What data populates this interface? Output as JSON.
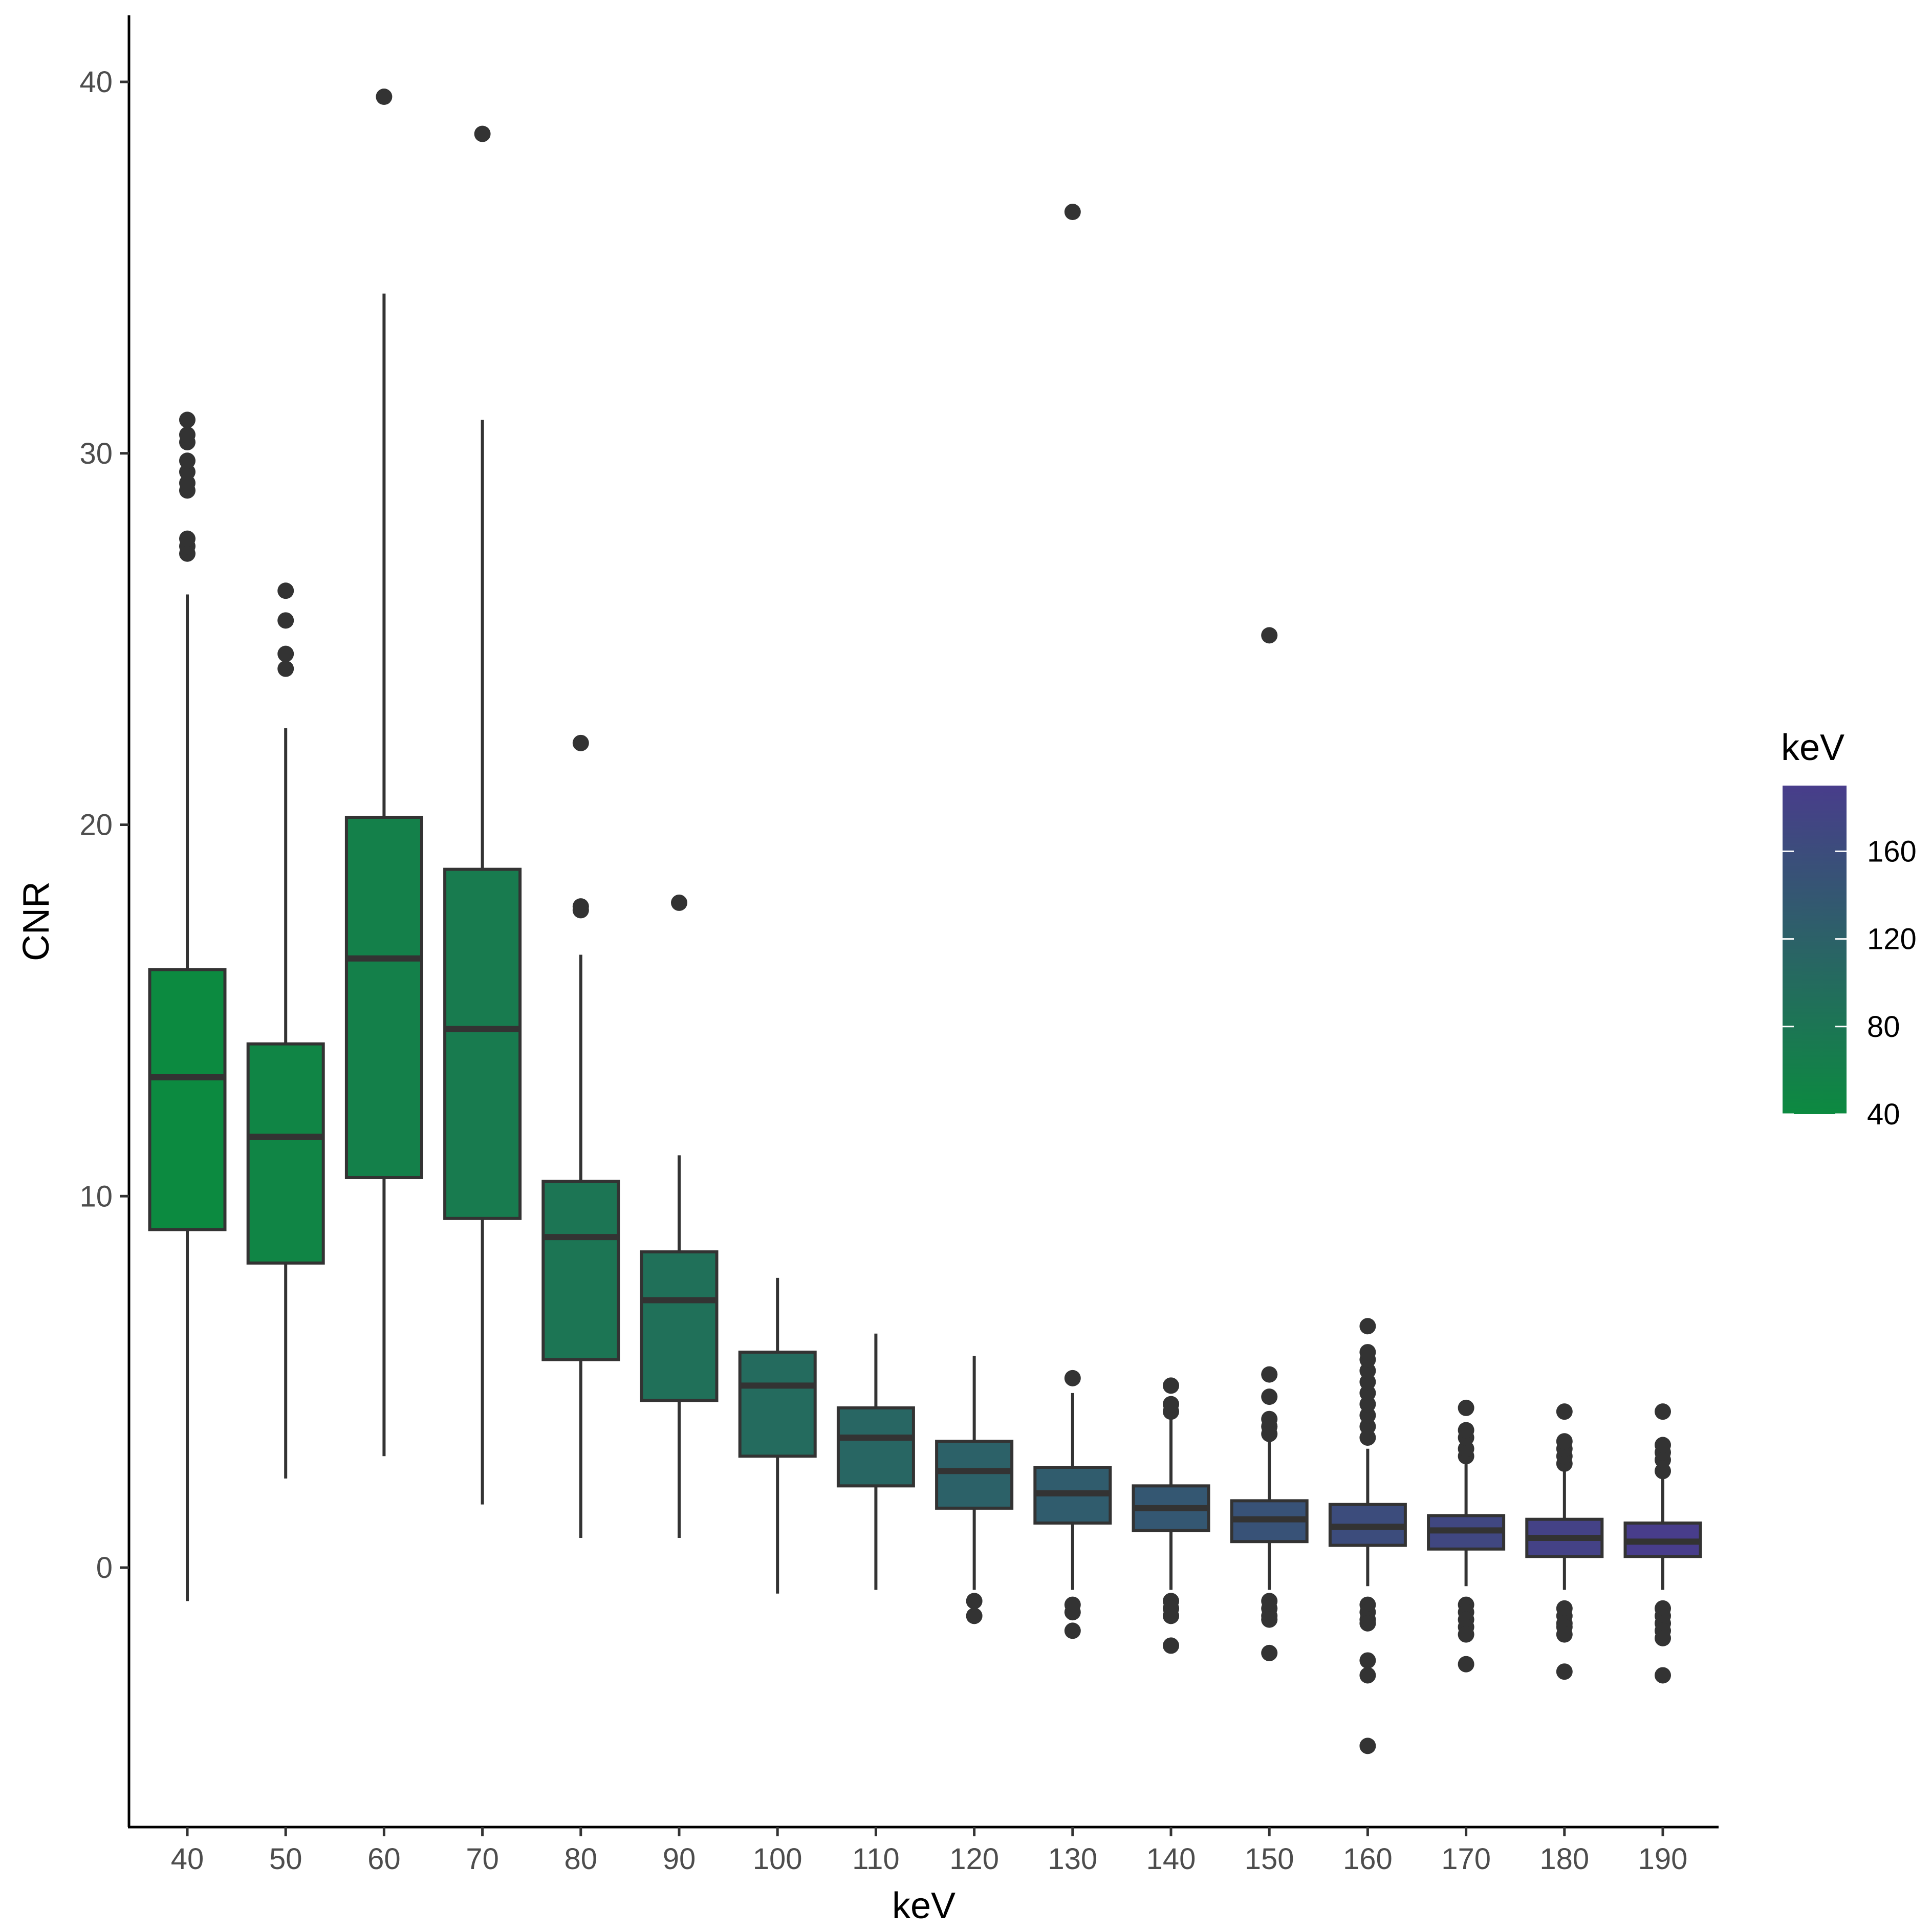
{
  "chart_data": {
    "type": "box",
    "xlabel": "keV",
    "ylabel": "CNR",
    "ylim": [
      -7,
      42
    ],
    "yticks": [
      0,
      10,
      20,
      30,
      40
    ],
    "categories": [
      "40",
      "50",
      "60",
      "70",
      "80",
      "90",
      "100",
      "110",
      "120",
      "130",
      "140",
      "150",
      "160",
      "170",
      "180",
      "190"
    ],
    "boxes": [
      {
        "x": "40",
        "q1": 9.1,
        "median": 13.2,
        "q3": 16.1,
        "whisker_low": -0.9,
        "whisker_high": 26.2,
        "outliers": [
          27.3,
          27.5,
          27.7,
          29.0,
          29.2,
          29.5,
          29.8,
          30.3,
          30.5,
          30.9
        ]
      },
      {
        "x": "50",
        "q1": 8.2,
        "median": 11.6,
        "q3": 14.1,
        "whisker_low": 2.4,
        "whisker_high": 22.6,
        "outliers": [
          24.2,
          24.6,
          25.5,
          26.3
        ]
      },
      {
        "x": "60",
        "q1": 10.5,
        "median": 16.4,
        "q3": 20.2,
        "whisker_low": 3.0,
        "whisker_high": 34.3,
        "outliers": [
          39.6
        ]
      },
      {
        "x": "70",
        "q1": 9.4,
        "median": 14.5,
        "q3": 18.8,
        "whisker_low": 1.7,
        "whisker_high": 30.9,
        "outliers": [
          38.6
        ]
      },
      {
        "x": "80",
        "q1": 5.6,
        "median": 8.9,
        "q3": 10.4,
        "whisker_low": 0.8,
        "whisker_high": 16.5,
        "outliers": [
          17.7,
          17.8,
          22.2
        ]
      },
      {
        "x": "90",
        "q1": 4.5,
        "median": 7.2,
        "q3": 8.5,
        "whisker_low": 0.8,
        "whisker_high": 11.1,
        "outliers": [
          17.9
        ]
      },
      {
        "x": "100",
        "q1": 3.0,
        "median": 4.9,
        "q3": 5.8,
        "whisker_low": -0.7,
        "whisker_high": 7.8,
        "outliers": []
      },
      {
        "x": "110",
        "q1": 2.2,
        "median": 3.5,
        "q3": 4.3,
        "whisker_low": -0.6,
        "whisker_high": 6.3,
        "outliers": []
      },
      {
        "x": "120",
        "q1": 1.6,
        "median": 2.6,
        "q3": 3.4,
        "whisker_low": -0.6,
        "whisker_high": 5.7,
        "outliers": [
          -0.9,
          -1.3
        ]
      },
      {
        "x": "130",
        "q1": 1.2,
        "median": 2.0,
        "q3": 2.7,
        "whisker_low": -0.6,
        "whisker_high": 4.7,
        "outliers": [
          5.1,
          -1.0,
          -1.2,
          -1.7,
          36.5
        ]
      },
      {
        "x": "140",
        "q1": 1.0,
        "median": 1.6,
        "q3": 2.2,
        "whisker_low": -0.6,
        "whisker_high": 4.0,
        "outliers": [
          4.2,
          4.4,
          4.9,
          -0.9,
          -1.1,
          -1.3,
          -2.1
        ]
      },
      {
        "x": "150",
        "q1": 0.7,
        "median": 1.3,
        "q3": 1.8,
        "whisker_low": -0.6,
        "whisker_high": 3.4,
        "outliers": [
          3.6,
          3.8,
          4.0,
          4.6,
          5.2,
          -0.9,
          -1.1,
          -1.3,
          -1.4,
          -2.3,
          25.1
        ]
      },
      {
        "x": "160",
        "q1": 0.6,
        "median": 1.1,
        "q3": 1.7,
        "whisker_low": -0.5,
        "whisker_high": 3.2,
        "outliers": [
          3.5,
          3.8,
          4.1,
          4.4,
          4.7,
          5.0,
          5.3,
          5.6,
          5.8,
          6.5,
          -1.0,
          -1.2,
          -1.4,
          -1.5,
          -2.5,
          -2.9,
          -4.8
        ]
      },
      {
        "x": "170",
        "q1": 0.5,
        "median": 1.0,
        "q3": 1.4,
        "whisker_low": -0.5,
        "whisker_high": 2.8,
        "outliers": [
          3.0,
          3.2,
          3.5,
          3.7,
          4.3,
          -1.0,
          -1.2,
          -1.4,
          -1.6,
          -1.8,
          -2.6
        ]
      },
      {
        "x": "180",
        "q1": 0.3,
        "median": 0.8,
        "q3": 1.3,
        "whisker_low": -0.6,
        "whisker_high": 2.6,
        "outliers": [
          2.8,
          3.0,
          3.2,
          3.4,
          4.2,
          -1.1,
          -1.3,
          -1.5,
          -1.6,
          -1.8,
          -2.8
        ]
      },
      {
        "x": "190",
        "q1": 0.3,
        "median": 0.7,
        "q3": 1.2,
        "whisker_low": -0.6,
        "whisker_high": 2.5,
        "outliers": [
          2.6,
          2.9,
          3.1,
          3.3,
          4.2,
          -1.1,
          -1.3,
          -1.5,
          -1.7,
          -1.9,
          -2.9
        ]
      }
    ],
    "legend": {
      "title": "keV",
      "type": "colorbar",
      "placement": "right",
      "range": [
        40,
        190
      ],
      "ticks": [
        40,
        80,
        120,
        160
      ],
      "color_low": "#0c8a40",
      "color_high": "#483d8b"
    }
  }
}
